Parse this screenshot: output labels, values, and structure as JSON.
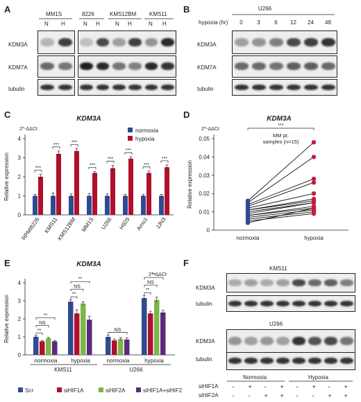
{
  "panels": {
    "A": {
      "letter": "A",
      "groups": [
        {
          "name": "MM1S",
          "cells": [
            "MM1S"
          ]
        },
        {
          "name": "8226 KMS12BM KMS11",
          "cells": [
            "8226",
            "KMS12BM",
            "KMS11"
          ]
        }
      ],
      "lane_labels": [
        "N",
        "H"
      ],
      "rows": [
        "KDM3A",
        "KDM7A",
        "tubulin"
      ],
      "intensity": {
        "KDM3A": [
          [
            0.25,
            0.8
          ],
          [
            0.2,
            0.75
          ],
          [
            0.35,
            0.8
          ],
          [
            0.4,
            0.9
          ]
        ],
        "KDM7A": [
          [
            0.6,
            0.55
          ],
          [
            0.95,
            0.9
          ],
          [
            0.55,
            0.5
          ],
          [
            0.9,
            0.85
          ]
        ],
        "tubulin": [
          [
            0.85,
            0.85
          ],
          [
            0.85,
            0.85
          ],
          [
            0.85,
            0.85
          ],
          [
            0.85,
            0.85
          ]
        ]
      }
    },
    "B": {
      "letter": "B",
      "cell": "U266",
      "time_label": "hypoxia (hr)",
      "times": [
        "0",
        "3",
        "6",
        "12",
        "24",
        "48"
      ],
      "rows": [
        "KDM3A",
        "KDM7A",
        "tubulin"
      ],
      "intensity": {
        "KDM3A": [
          0.35,
          0.4,
          0.5,
          0.75,
          0.8,
          0.85
        ],
        "KDM7A": [
          0.6,
          0.6,
          0.55,
          0.65,
          0.65,
          0.6
        ],
        "tubulin": [
          0.85,
          0.85,
          0.85,
          0.85,
          0.85,
          0.85
        ]
      }
    },
    "F": {
      "letter": "F",
      "blots": [
        {
          "cell": "KMS11",
          "rows": [
            "KDM3A",
            "tubulin"
          ],
          "intensity": {
            "KDM3A": [
              0.3,
              0.35,
              0.3,
              0.35,
              0.75,
              0.6,
              0.65,
              0.5
            ],
            "tubulin": [
              0.85,
              0.85,
              0.85,
              0.85,
              0.85,
              0.85,
              0.85,
              0.85
            ]
          }
        },
        {
          "cell": "U266",
          "rows": [
            "KDM3A",
            "tubulin"
          ],
          "intensity": {
            "KDM3A": [
              0.4,
              0.35,
              0.4,
              0.35,
              0.85,
              0.7,
              0.75,
              0.55
            ],
            "tubulin": [
              0.85,
              0.85,
              0.85,
              0.85,
              0.85,
              0.85,
              0.85,
              0.85
            ]
          }
        }
      ],
      "conditions": [
        "Normoxia",
        "Hypoxia"
      ],
      "treatments": [
        {
          "name": "siHIF1A",
          "signs": [
            "-",
            "+",
            "-",
            "+",
            "-",
            "+",
            "-",
            "+"
          ]
        },
        {
          "name": "siHIF2A",
          "signs": [
            "-",
            "-",
            "+",
            "+",
            "-",
            "-",
            "+",
            "+"
          ]
        }
      ]
    }
  },
  "chart_data": [
    {
      "panel": "C",
      "type": "bar",
      "title": "KDM3A",
      "corner_label": "2^-ΔΔCt",
      "ylabel": "Relative expression",
      "ylim": [
        0,
        4
      ],
      "yticks": [
        0,
        1,
        2,
        3,
        4
      ],
      "categories": [
        "RPMI8226",
        "KMS11",
        "KMS12BM",
        "MM1S",
        "U266",
        "H929",
        "Amo1",
        "JJN3"
      ],
      "series": [
        {
          "name": "normoxia",
          "color": "#2f4a8f",
          "values": [
            1,
            1,
            1,
            1,
            1,
            1,
            1,
            1
          ],
          "err": [
            0.08,
            0.15,
            0.1,
            0.12,
            0.1,
            0.08,
            0.08,
            0.08
          ]
        },
        {
          "name": "hypoxia",
          "color": "#b0102c",
          "values": [
            2.0,
            3.2,
            3.35,
            2.2,
            2.45,
            2.95,
            2.2,
            2.5
          ],
          "err": [
            0.12,
            0.15,
            0.12,
            0.08,
            0.15,
            0.1,
            0.1,
            0.12
          ]
        }
      ],
      "significance": [
        "***",
        "***",
        "***",
        "***",
        "***",
        "***",
        "***",
        "***"
      ],
      "legend": "top-right"
    },
    {
      "panel": "D",
      "type": "scatter",
      "title": "KDM3A",
      "corner_label": "2^-ΔΔCt",
      "ylabel": "Relative expression",
      "ylim": [
        0,
        0.05
      ],
      "yticks": [
        0,
        0.01,
        0.02,
        0.03,
        0.04,
        0.05
      ],
      "categories": [
        "normoxia",
        "hypoxia"
      ],
      "annotation": "MM pt. samples (n=15)",
      "significance": "***",
      "normoxia_color": "#2f4a8f",
      "hypoxia_color": "#c41d3c",
      "pairs": [
        [
          0.016,
          0.048
        ],
        [
          0.015,
          0.04
        ],
        [
          0.014,
          0.028
        ],
        [
          0.013,
          0.026
        ],
        [
          0.012,
          0.02
        ],
        [
          0.011,
          0.017
        ],
        [
          0.011,
          0.016
        ],
        [
          0.01,
          0.015
        ],
        [
          0.009,
          0.015
        ],
        [
          0.008,
          0.013
        ],
        [
          0.008,
          0.012
        ],
        [
          0.007,
          0.011
        ],
        [
          0.006,
          0.01
        ],
        [
          0.005,
          0.009
        ],
        [
          0.004,
          0.012
        ]
      ]
    },
    {
      "panel": "E",
      "type": "bar",
      "title": "KDM3A",
      "corner_label": "2^-ΔΔCt",
      "ylabel": "Relative expression",
      "ylim": [
        0,
        4
      ],
      "yticks": [
        0,
        1,
        2,
        3,
        4
      ],
      "groups": [
        {
          "cell": "KMS11",
          "conditions": [
            "normoxia",
            "hypoxia"
          ]
        },
        {
          "cell": "U266",
          "conditions": [
            "normoxia",
            "hypoxia"
          ]
        }
      ],
      "series": [
        {
          "name": "Scr",
          "color": "#2f4a8f",
          "values": [
            1.0,
            2.95,
            1.0,
            3.15
          ],
          "err": [
            0.06,
            0.12,
            0.1,
            0.15
          ]
        },
        {
          "name": "siHIF1A",
          "color": "#b0102c",
          "values": [
            0.75,
            2.3,
            0.8,
            2.3
          ],
          "err": [
            0.04,
            0.2,
            0.08,
            0.12
          ]
        },
        {
          "name": "siHIF2A",
          "color": "#7ab648",
          "values": [
            0.92,
            2.85,
            0.88,
            3.05
          ],
          "err": [
            0.05,
            0.1,
            0.08,
            0.15
          ]
        },
        {
          "name": "siHIF1A+siHIF2A",
          "color": "#5b2a7a",
          "values": [
            0.75,
            1.95,
            0.85,
            2.35
          ],
          "err": [
            0.04,
            0.2,
            0.1,
            0.12
          ]
        }
      ],
      "brackets": [
        "**",
        "NS",
        "**",
        "**",
        "NS",
        "**",
        "NS",
        "**",
        "NS",
        "**"
      ],
      "legend": "bottom"
    }
  ]
}
